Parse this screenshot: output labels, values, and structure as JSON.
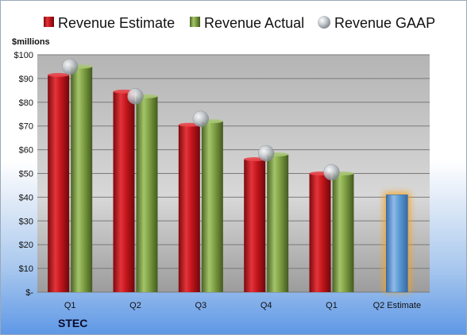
{
  "chart_data": {
    "type": "bar",
    "unit_label": "$millions",
    "categories": [
      "Q1",
      "Q2",
      "Q3",
      "Q4",
      "Q1",
      "Q2 Estimate"
    ],
    "series": [
      {
        "name": "Revenue Estimate",
        "values": [
          91.5,
          84.5,
          70.5,
          56,
          50,
          null
        ],
        "color": "#c4161c"
      },
      {
        "name": "Revenue Actual",
        "values": [
          95,
          82.5,
          72,
          58,
          50,
          null
        ],
        "color": "#7fa043"
      },
      {
        "name": "Revenue GAAP",
        "values": [
          95,
          82.5,
          73,
          58.5,
          50.5,
          null
        ],
        "color": "#b9bec4",
        "marker": "sphere"
      }
    ],
    "projection": {
      "category": "Q2 Estimate",
      "value": 41,
      "color": "#5b9bd5",
      "glow": "#f6a21e"
    },
    "y_ticks": [
      "$-",
      "$10",
      "$20",
      "$30",
      "$40",
      "$50",
      "$60",
      "$70",
      "$80",
      "$90",
      "$100"
    ],
    "ylim": [
      0,
      100
    ],
    "grid": true,
    "legend": "top"
  },
  "brand": "STEC"
}
